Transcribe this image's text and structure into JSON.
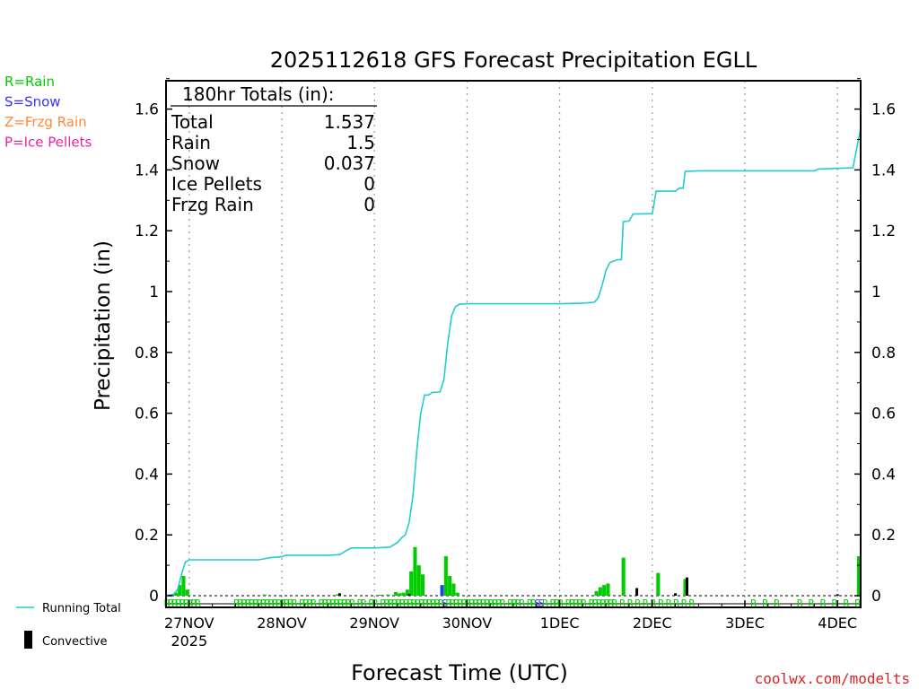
{
  "chart_data": {
    "type": "bar+line",
    "title": "2025112618 GFS Forecast Precipitation EGLL",
    "xlabel": "Forecast Time (UTC)",
    "ylabel": "Precipitation (in)",
    "ylim": [
      -0.04,
      1.7
    ],
    "xlim_hours": [
      0,
      180
    ],
    "y_ticks": [
      0,
      0.2,
      0.4,
      0.6,
      0.8,
      1,
      1.2,
      1.4,
      1.6
    ],
    "y_tick_labels": [
      "0",
      "0.2",
      "0.4",
      "0.6",
      "0.8",
      "1",
      "1.2",
      "1.4",
      "1.6"
    ],
    "x_ticks": [
      {
        "hour": 6,
        "label": "27NOV",
        "sublabel": "2025"
      },
      {
        "hour": 30,
        "label": "28NOV"
      },
      {
        "hour": 54,
        "label": "29NOV"
      },
      {
        "hour": 78,
        "label": "30NOV"
      },
      {
        "hour": 102,
        "label": "1DEC"
      },
      {
        "hour": 126,
        "label": "2DEC"
      },
      {
        "hour": 150,
        "label": "3DEC"
      },
      {
        "hour": 174,
        "label": "4DEC"
      }
    ],
    "legend_types": [
      {
        "label": "R=Rain",
        "color": "#00cc00"
      },
      {
        "label": "S=Snow",
        "color": "#3333ff"
      },
      {
        "label": "Z=Frzg Rain",
        "color": "#ff8833"
      },
      {
        "label": "P=Ice Pellets",
        "color": "#ee2299"
      }
    ],
    "legend_series": [
      {
        "label": "Running Total",
        "color": "#22cccc"
      },
      {
        "label": "Convective",
        "color": "#000000"
      }
    ],
    "totals": {
      "header": "180hr Totals (in):",
      "rows": [
        {
          "label": "Total",
          "value": "1.537"
        },
        {
          "label": "Rain",
          "value": "1.5"
        },
        {
          "label": "Snow",
          "value": "0.037"
        },
        {
          "label": "Ice Pellets",
          "value": "0"
        },
        {
          "label": "Frzg Rain",
          "value": "0"
        }
      ]
    },
    "running_total": [
      [
        0,
        0
      ],
      [
        2,
        0.005
      ],
      [
        3,
        0.02
      ],
      [
        4,
        0.07
      ],
      [
        5,
        0.11
      ],
      [
        6,
        0.118
      ],
      [
        12,
        0.118
      ],
      [
        18,
        0.118
      ],
      [
        24,
        0.118
      ],
      [
        27,
        0.125
      ],
      [
        30,
        0.128
      ],
      [
        31,
        0.133
      ],
      [
        36,
        0.133
      ],
      [
        42,
        0.133
      ],
      [
        45,
        0.135
      ],
      [
        47,
        0.15
      ],
      [
        48,
        0.157
      ],
      [
        54,
        0.157
      ],
      [
        58,
        0.16
      ],
      [
        60,
        0.175
      ],
      [
        61,
        0.19
      ],
      [
        62,
        0.2
      ],
      [
        63,
        0.24
      ],
      [
        64,
        0.33
      ],
      [
        65,
        0.48
      ],
      [
        66,
        0.6
      ],
      [
        67,
        0.66
      ],
      [
        68,
        0.66
      ],
      [
        69,
        0.668
      ],
      [
        71,
        0.67
      ],
      [
        72,
        0.71
      ],
      [
        73,
        0.83
      ],
      [
        74,
        0.92
      ],
      [
        75,
        0.95
      ],
      [
        76,
        0.958
      ],
      [
        78,
        0.96
      ],
      [
        84,
        0.96
      ],
      [
        90,
        0.96
      ],
      [
        96,
        0.96
      ],
      [
        102,
        0.96
      ],
      [
        108,
        0.962
      ],
      [
        111,
        0.965
      ],
      [
        112,
        0.98
      ],
      [
        113,
        1.02
      ],
      [
        114,
        1.07
      ],
      [
        115,
        1.095
      ],
      [
        117,
        1.105
      ],
      [
        118,
        1.105
      ],
      [
        118.5,
        1.23
      ],
      [
        120,
        1.232
      ],
      [
        121,
        1.255
      ],
      [
        126,
        1.256
      ],
      [
        127,
        1.33
      ],
      [
        132,
        1.33
      ],
      [
        133,
        1.34
      ],
      [
        134,
        1.34
      ],
      [
        134.5,
        1.395
      ],
      [
        138,
        1.397
      ],
      [
        150,
        1.397
      ],
      [
        168,
        1.397
      ],
      [
        169,
        1.403
      ],
      [
        174,
        1.405
      ],
      [
        178,
        1.407
      ],
      [
        180,
        1.537
      ]
    ],
    "precip_bars": [
      {
        "hour": 3,
        "value": 0.01,
        "type": "rain"
      },
      {
        "hour": 4,
        "value": 0.035,
        "type": "rain"
      },
      {
        "hour": 5,
        "value": 0.065,
        "type": "rain"
      },
      {
        "hour": 6,
        "value": 0.02,
        "type": "rain"
      },
      {
        "hour": 26,
        "value": 0.004,
        "type": "rain"
      },
      {
        "hour": 45,
        "value": 0.005,
        "type": "rain"
      },
      {
        "hour": 56,
        "value": 0.003,
        "type": "rain"
      },
      {
        "hour": 58,
        "value": 0.004,
        "type": "rain"
      },
      {
        "hour": 60,
        "value": 0.012,
        "type": "rain"
      },
      {
        "hour": 61,
        "value": 0.008,
        "type": "rain"
      },
      {
        "hour": 62,
        "value": 0.01,
        "type": "rain"
      },
      {
        "hour": 63,
        "value": 0.02,
        "type": "rain"
      },
      {
        "hour": 64,
        "value": 0.08,
        "type": "rain"
      },
      {
        "hour": 65,
        "value": 0.16,
        "type": "rain"
      },
      {
        "hour": 66,
        "value": 0.1,
        "type": "rain"
      },
      {
        "hour": 67,
        "value": 0.07,
        "type": "rain"
      },
      {
        "hour": 72,
        "value": 0.035,
        "type": "snow"
      },
      {
        "hour": 73,
        "value": 0.13,
        "type": "rain"
      },
      {
        "hour": 74,
        "value": 0.065,
        "type": "rain"
      },
      {
        "hour": 75,
        "value": 0.04,
        "type": "rain"
      },
      {
        "hour": 76,
        "value": 0.01,
        "type": "rain"
      },
      {
        "hour": 112,
        "value": 0.015,
        "type": "rain"
      },
      {
        "hour": 113,
        "value": 0.028,
        "type": "rain"
      },
      {
        "hour": 114,
        "value": 0.035,
        "type": "rain"
      },
      {
        "hour": 115,
        "value": 0.04,
        "type": "rain"
      },
      {
        "hour": 119,
        "value": 0.125,
        "type": "rain"
      },
      {
        "hour": 128,
        "value": 0.075,
        "type": "rain"
      },
      {
        "hour": 135,
        "value": 0.055,
        "type": "rain"
      },
      {
        "hour": 180,
        "value": 0.13,
        "type": "rain"
      }
    ],
    "convective_bars": [
      {
        "hour": 45,
        "value": 0.008
      },
      {
        "hour": 63,
        "value": 0.006
      },
      {
        "hour": 122,
        "value": 0.025
      },
      {
        "hour": 132,
        "value": 0.008
      },
      {
        "hour": 135,
        "value": 0.06
      },
      {
        "hour": 174,
        "value": 0.005
      }
    ],
    "precip_type_codes": [
      {
        "hour": 0,
        "code": "R"
      },
      {
        "hour": 1,
        "code": "R"
      },
      {
        "hour": 2,
        "code": "R"
      },
      {
        "hour": 3,
        "code": "R"
      },
      {
        "hour": 4,
        "code": "R"
      },
      {
        "hour": 5,
        "code": "R"
      },
      {
        "hour": 6,
        "code": "R"
      },
      {
        "hour": 7,
        "code": "R"
      },
      {
        "hour": 8,
        "code": "R"
      },
      {
        "hour": 18,
        "code": "R"
      },
      {
        "hour": 19,
        "code": "R"
      },
      {
        "hour": 20,
        "code": "R"
      },
      {
        "hour": 21,
        "code": "R"
      },
      {
        "hour": 22,
        "code": "R"
      },
      {
        "hour": 23,
        "code": "R"
      },
      {
        "hour": 24,
        "code": "R"
      },
      {
        "hour": 25,
        "code": "R"
      },
      {
        "hour": 26,
        "code": "R"
      },
      {
        "hour": 27,
        "code": "R"
      },
      {
        "hour": 28,
        "code": "R"
      },
      {
        "hour": 29,
        "code": "R"
      },
      {
        "hour": 30,
        "code": "R"
      },
      {
        "hour": 31,
        "code": "R"
      },
      {
        "hour": 32,
        "code": "R"
      },
      {
        "hour": 33,
        "code": "R"
      },
      {
        "hour": 35,
        "code": "R"
      },
      {
        "hour": 36,
        "code": "R"
      },
      {
        "hour": 37,
        "code": "R"
      },
      {
        "hour": 38,
        "code": "R"
      },
      {
        "hour": 40,
        "code": "R"
      },
      {
        "hour": 41,
        "code": "R"
      },
      {
        "hour": 42,
        "code": "R"
      },
      {
        "hour": 43,
        "code": "R"
      },
      {
        "hour": 44,
        "code": "R"
      },
      {
        "hour": 45,
        "code": "R"
      },
      {
        "hour": 46,
        "code": "R"
      },
      {
        "hour": 47,
        "code": "R"
      },
      {
        "hour": 48,
        "code": "R"
      },
      {
        "hour": 50,
        "code": "R"
      },
      {
        "hour": 51,
        "code": "R"
      },
      {
        "hour": 53,
        "code": "R"
      },
      {
        "hour": 54,
        "code": "R"
      },
      {
        "hour": 56,
        "code": "R"
      },
      {
        "hour": 57,
        "code": "R"
      },
      {
        "hour": 58,
        "code": "R"
      },
      {
        "hour": 59,
        "code": "R"
      },
      {
        "hour": 60,
        "code": "R"
      },
      {
        "hour": 61,
        "code": "R"
      },
      {
        "hour": 62,
        "code": "R"
      },
      {
        "hour": 63,
        "code": "R"
      },
      {
        "hour": 64,
        "code": "R"
      },
      {
        "hour": 65,
        "code": "R"
      },
      {
        "hour": 66,
        "code": "R"
      },
      {
        "hour": 67,
        "code": "R"
      },
      {
        "hour": 68,
        "code": "R"
      },
      {
        "hour": 69,
        "code": "R"
      },
      {
        "hour": 70,
        "code": "R"
      },
      {
        "hour": 71,
        "code": "R"
      },
      {
        "hour": 72,
        "code": "S"
      },
      {
        "hour": 73,
        "code": "R"
      },
      {
        "hour": 74,
        "code": "R"
      },
      {
        "hour": 75,
        "code": "R"
      },
      {
        "hour": 76,
        "code": "R"
      },
      {
        "hour": 77,
        "code": "R"
      },
      {
        "hour": 78,
        "code": "R"
      },
      {
        "hour": 79,
        "code": "R"
      },
      {
        "hour": 80,
        "code": "R"
      },
      {
        "hour": 81,
        "code": "R"
      },
      {
        "hour": 82,
        "code": "R"
      },
      {
        "hour": 83,
        "code": "R"
      },
      {
        "hour": 84,
        "code": "R"
      },
      {
        "hour": 85,
        "code": "R"
      },
      {
        "hour": 86,
        "code": "R"
      },
      {
        "hour": 87,
        "code": "R"
      },
      {
        "hour": 89,
        "code": "R"
      },
      {
        "hour": 90,
        "code": "R"
      },
      {
        "hour": 91,
        "code": "R"
      },
      {
        "hour": 92,
        "code": "R"
      },
      {
        "hour": 94,
        "code": "R"
      },
      {
        "hour": 95,
        "code": "R"
      },
      {
        "hour": 96,
        "code": "S"
      },
      {
        "hour": 97,
        "code": "S"
      },
      {
        "hour": 98,
        "code": "R"
      },
      {
        "hour": 100,
        "code": "R"
      },
      {
        "hour": 101,
        "code": "R"
      },
      {
        "hour": 102,
        "code": "R"
      },
      {
        "hour": 104,
        "code": "R"
      },
      {
        "hour": 105,
        "code": "R"
      },
      {
        "hour": 106,
        "code": "R"
      },
      {
        "hour": 107,
        "code": "R"
      },
      {
        "hour": 108,
        "code": "R"
      },
      {
        "hour": 110,
        "code": "R"
      },
      {
        "hour": 111,
        "code": "R"
      },
      {
        "hour": 112,
        "code": "R"
      },
      {
        "hour": 113,
        "code": "R"
      },
      {
        "hour": 114,
        "code": "R"
      },
      {
        "hour": 115,
        "code": "R"
      },
      {
        "hour": 116,
        "code": "R"
      },
      {
        "hour": 118,
        "code": "R"
      },
      {
        "hour": 120,
        "code": "R"
      },
      {
        "hour": 122,
        "code": "R"
      },
      {
        "hour": 124,
        "code": "R"
      },
      {
        "hour": 126,
        "code": "R"
      },
      {
        "hour": 128,
        "code": "R"
      },
      {
        "hour": 130,
        "code": "R"
      },
      {
        "hour": 132,
        "code": "R"
      },
      {
        "hour": 134,
        "code": "R"
      },
      {
        "hour": 136,
        "code": "R"
      },
      {
        "hour": 152,
        "code": "R"
      },
      {
        "hour": 155,
        "code": "R"
      },
      {
        "hour": 158,
        "code": "R"
      },
      {
        "hour": 164,
        "code": "R"
      },
      {
        "hour": 167,
        "code": "R"
      },
      {
        "hour": 170,
        "code": "R"
      },
      {
        "hour": 173,
        "code": "R"
      },
      {
        "hour": 176,
        "code": "R"
      },
      {
        "hour": 179,
        "code": "R"
      }
    ],
    "code_colors": {
      "R": "#00cc00",
      "S": "#3333ff",
      "Z": "#ff8833",
      "P": "#ee2299"
    },
    "watermark": "coolwx.com/modelts"
  }
}
